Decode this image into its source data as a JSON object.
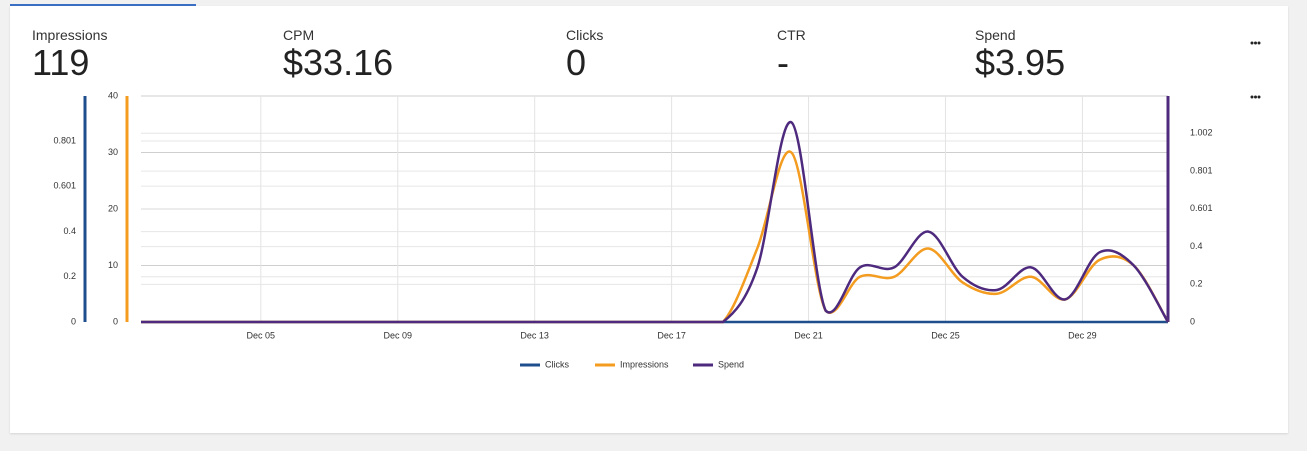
{
  "kpis": [
    {
      "label": "Impressions",
      "value": "119"
    },
    {
      "label": "CPM",
      "value": "$33.16"
    },
    {
      "label": "Clicks",
      "value": "0"
    },
    {
      "label": "CTR",
      "value": "-"
    },
    {
      "label": "Spend",
      "value": "$3.95"
    }
  ],
  "chart_data": {
    "type": "line",
    "categories": [
      null,
      null,
      null,
      null,
      "Dec 05",
      null,
      null,
      null,
      "Dec 09",
      null,
      null,
      null,
      "Dec 13",
      null,
      null,
      null,
      "Dec 17",
      null,
      null,
      null,
      "Dec 21",
      null,
      null,
      null,
      "Dec 25",
      null,
      null,
      null,
      "Dec 29",
      null,
      null
    ],
    "ylim": [
      0,
      1.0
    ],
    "yticks": [
      0,
      0.2,
      0.4,
      0.601,
      0.801
    ],
    "y2lim": [
      0,
      40
    ],
    "y2ticks": [
      0,
      10,
      20,
      30,
      40
    ],
    "y3lim": [
      0,
      1.2
    ],
    "y3ticks": [
      0,
      0.2,
      0.4,
      0.601,
      0.801,
      1.002
    ],
    "grid": true,
    "legend": "bottom",
    "series": [
      {
        "name": "Clicks",
        "color": "#1f4e8c",
        "axis": "y",
        "values": [
          0,
          0,
          0,
          0,
          0,
          0,
          0,
          0,
          0,
          0,
          0,
          0,
          0,
          0,
          0,
          0,
          0,
          0,
          0,
          0,
          0,
          0,
          0,
          0,
          0,
          0,
          0,
          0,
          0,
          0,
          0
        ]
      },
      {
        "name": "Impressions",
        "color": "#f39c1f",
        "axis": "y2",
        "values": [
          0,
          0,
          0,
          0,
          0,
          0,
          0,
          0,
          0,
          0,
          0,
          0,
          0,
          0,
          0,
          0,
          0,
          0,
          13,
          30,
          2,
          8,
          8,
          13,
          7,
          5,
          8,
          4,
          11,
          10,
          0
        ]
      },
      {
        "name": "Spend",
        "color": "#4e2a7e",
        "axis": "y3",
        "values": [
          0,
          0,
          0,
          0,
          0,
          0,
          0,
          0,
          0,
          0,
          0,
          0,
          0,
          0,
          0,
          0,
          0,
          0,
          0.286,
          1.06,
          0.06,
          0.29,
          0.29,
          0.48,
          0.24,
          0.17,
          0.29,
          0.12,
          0.37,
          0.3,
          0
        ]
      }
    ]
  }
}
